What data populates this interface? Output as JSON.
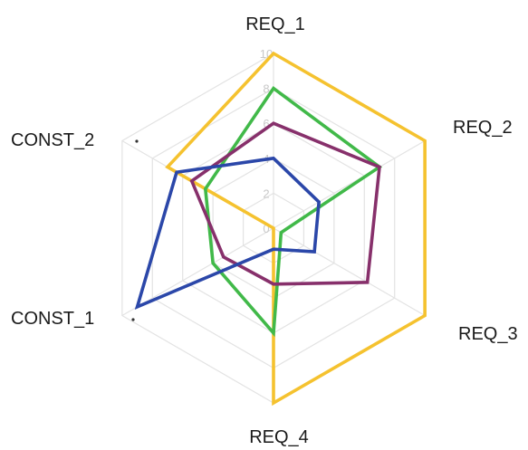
{
  "chart_data": {
    "type": "radar",
    "categories": [
      "REQ_1",
      "REQ_2",
      "REQ_3",
      "REQ_4",
      "CONST_1",
      "CONST_2"
    ],
    "rlim": [
      0,
      10
    ],
    "ticks": [
      "0",
      "2",
      "4",
      "6",
      "8",
      "10"
    ],
    "grid": true,
    "series": [
      {
        "color": "#f5c22f",
        "values": [
          10,
          10,
          10,
          10,
          0,
          7
        ]
      },
      {
        "color": "#41b949",
        "values": [
          8,
          7,
          0.5,
          6,
          4,
          4.5
        ]
      },
      {
        "color": "#87306b",
        "values": [
          6,
          7,
          6.2,
          3.2,
          3.3,
          5.4
        ]
      },
      {
        "color": "#2b47a9",
        "values": [
          4,
          3,
          2.7,
          1.2,
          9,
          6.4
        ]
      }
    ]
  }
}
